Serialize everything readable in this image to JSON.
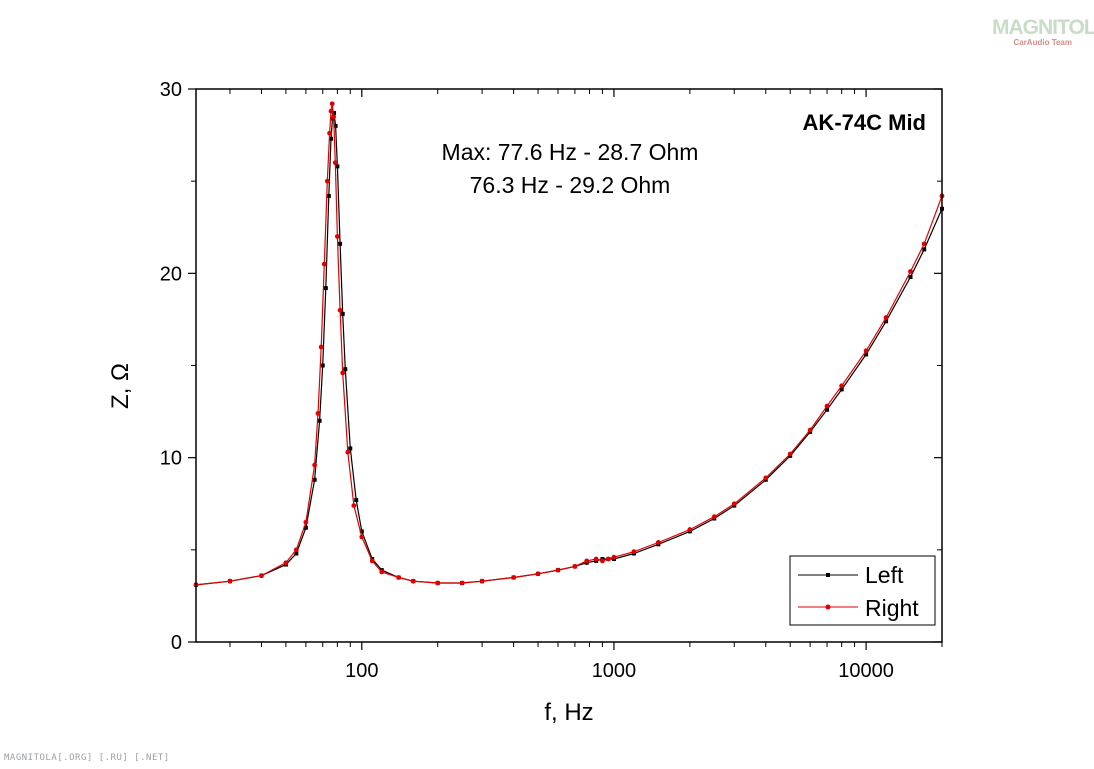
{
  "chart_data": {
    "type": "line",
    "title": "AK-74C Mid",
    "xlabel": "f, Hz",
    "ylabel": "Z, Ω",
    "xscale": "log",
    "xlim": [
      22,
      20000
    ],
    "ylim": [
      0,
      30
    ],
    "xticks": [
      100,
      1000,
      10000
    ],
    "xtick_labels": [
      "100",
      "1000",
      "10000"
    ],
    "yticks": [
      0,
      10,
      20,
      30
    ],
    "ytick_labels": [
      "0",
      "10",
      "20",
      "30"
    ],
    "grid": false,
    "legend_position": "bottom-right",
    "annotations": [
      "Max: 77.6 Hz - 28.7 Ohm",
      "76.3 Hz - 29.2 Ohm"
    ],
    "series": [
      {
        "name": "Left",
        "color": "#000000",
        "marker": "square",
        "x": [
          22,
          30,
          40,
          50,
          55,
          60,
          65,
          68,
          70,
          72,
          74,
          75.5,
          76.5,
          77.6,
          78.7,
          80,
          82,
          84,
          86,
          90,
          95,
          100,
          110,
          120,
          140,
          160,
          200,
          250,
          300,
          400,
          500,
          600,
          700,
          780,
          850,
          900,
          950,
          1000,
          1200,
          1500,
          2000,
          2500,
          3000,
          4000,
          5000,
          6000,
          7000,
          8000,
          10000,
          12000,
          15000,
          17000,
          20000
        ],
        "y": [
          3.1,
          3.3,
          3.6,
          4.2,
          4.8,
          6.2,
          8.8,
          12.0,
          15.0,
          19.2,
          24.2,
          27.3,
          28.4,
          28.7,
          28.0,
          25.8,
          21.6,
          17.8,
          14.8,
          10.5,
          7.7,
          6.0,
          4.5,
          3.9,
          3.5,
          3.3,
          3.2,
          3.2,
          3.3,
          3.5,
          3.7,
          3.9,
          4.1,
          4.3,
          4.4,
          4.5,
          4.5,
          4.5,
          4.8,
          5.3,
          6.0,
          6.7,
          7.4,
          8.8,
          10.1,
          11.4,
          12.6,
          13.7,
          15.6,
          17.4,
          19.8,
          21.3,
          23.5
        ]
      },
      {
        "name": "Right",
        "color": "#e00000",
        "marker": "circle",
        "x": [
          22,
          30,
          40,
          50,
          55,
          60,
          65,
          67,
          69,
          71,
          73,
          74.5,
          75.5,
          76.3,
          77.3,
          78.5,
          80,
          82,
          84,
          88,
          93,
          100,
          110,
          120,
          140,
          160,
          200,
          250,
          300,
          400,
          500,
          600,
          700,
          780,
          850,
          900,
          950,
          1000,
          1200,
          1500,
          2000,
          2500,
          3000,
          4000,
          5000,
          6000,
          7000,
          8000,
          10000,
          12000,
          15000,
          17000,
          20000
        ],
        "y": [
          3.1,
          3.3,
          3.6,
          4.3,
          5.0,
          6.5,
          9.6,
          12.4,
          16.0,
          20.5,
          25.0,
          27.6,
          28.8,
          29.2,
          28.5,
          26.0,
          22.0,
          18.0,
          14.6,
          10.3,
          7.4,
          5.7,
          4.4,
          3.8,
          3.5,
          3.3,
          3.2,
          3.2,
          3.3,
          3.5,
          3.7,
          3.9,
          4.1,
          4.4,
          4.5,
          4.4,
          4.5,
          4.6,
          4.9,
          5.4,
          6.1,
          6.8,
          7.5,
          8.9,
          10.2,
          11.5,
          12.8,
          13.9,
          15.8,
          17.6,
          20.1,
          21.6,
          24.2
        ]
      }
    ]
  },
  "watermark": {
    "logo_text": "MAGNITOLA",
    "logo_subtext": "CarAudio Team",
    "footer_text": "MAGNITOLA[.ORG] [.RU] [.NET]"
  }
}
